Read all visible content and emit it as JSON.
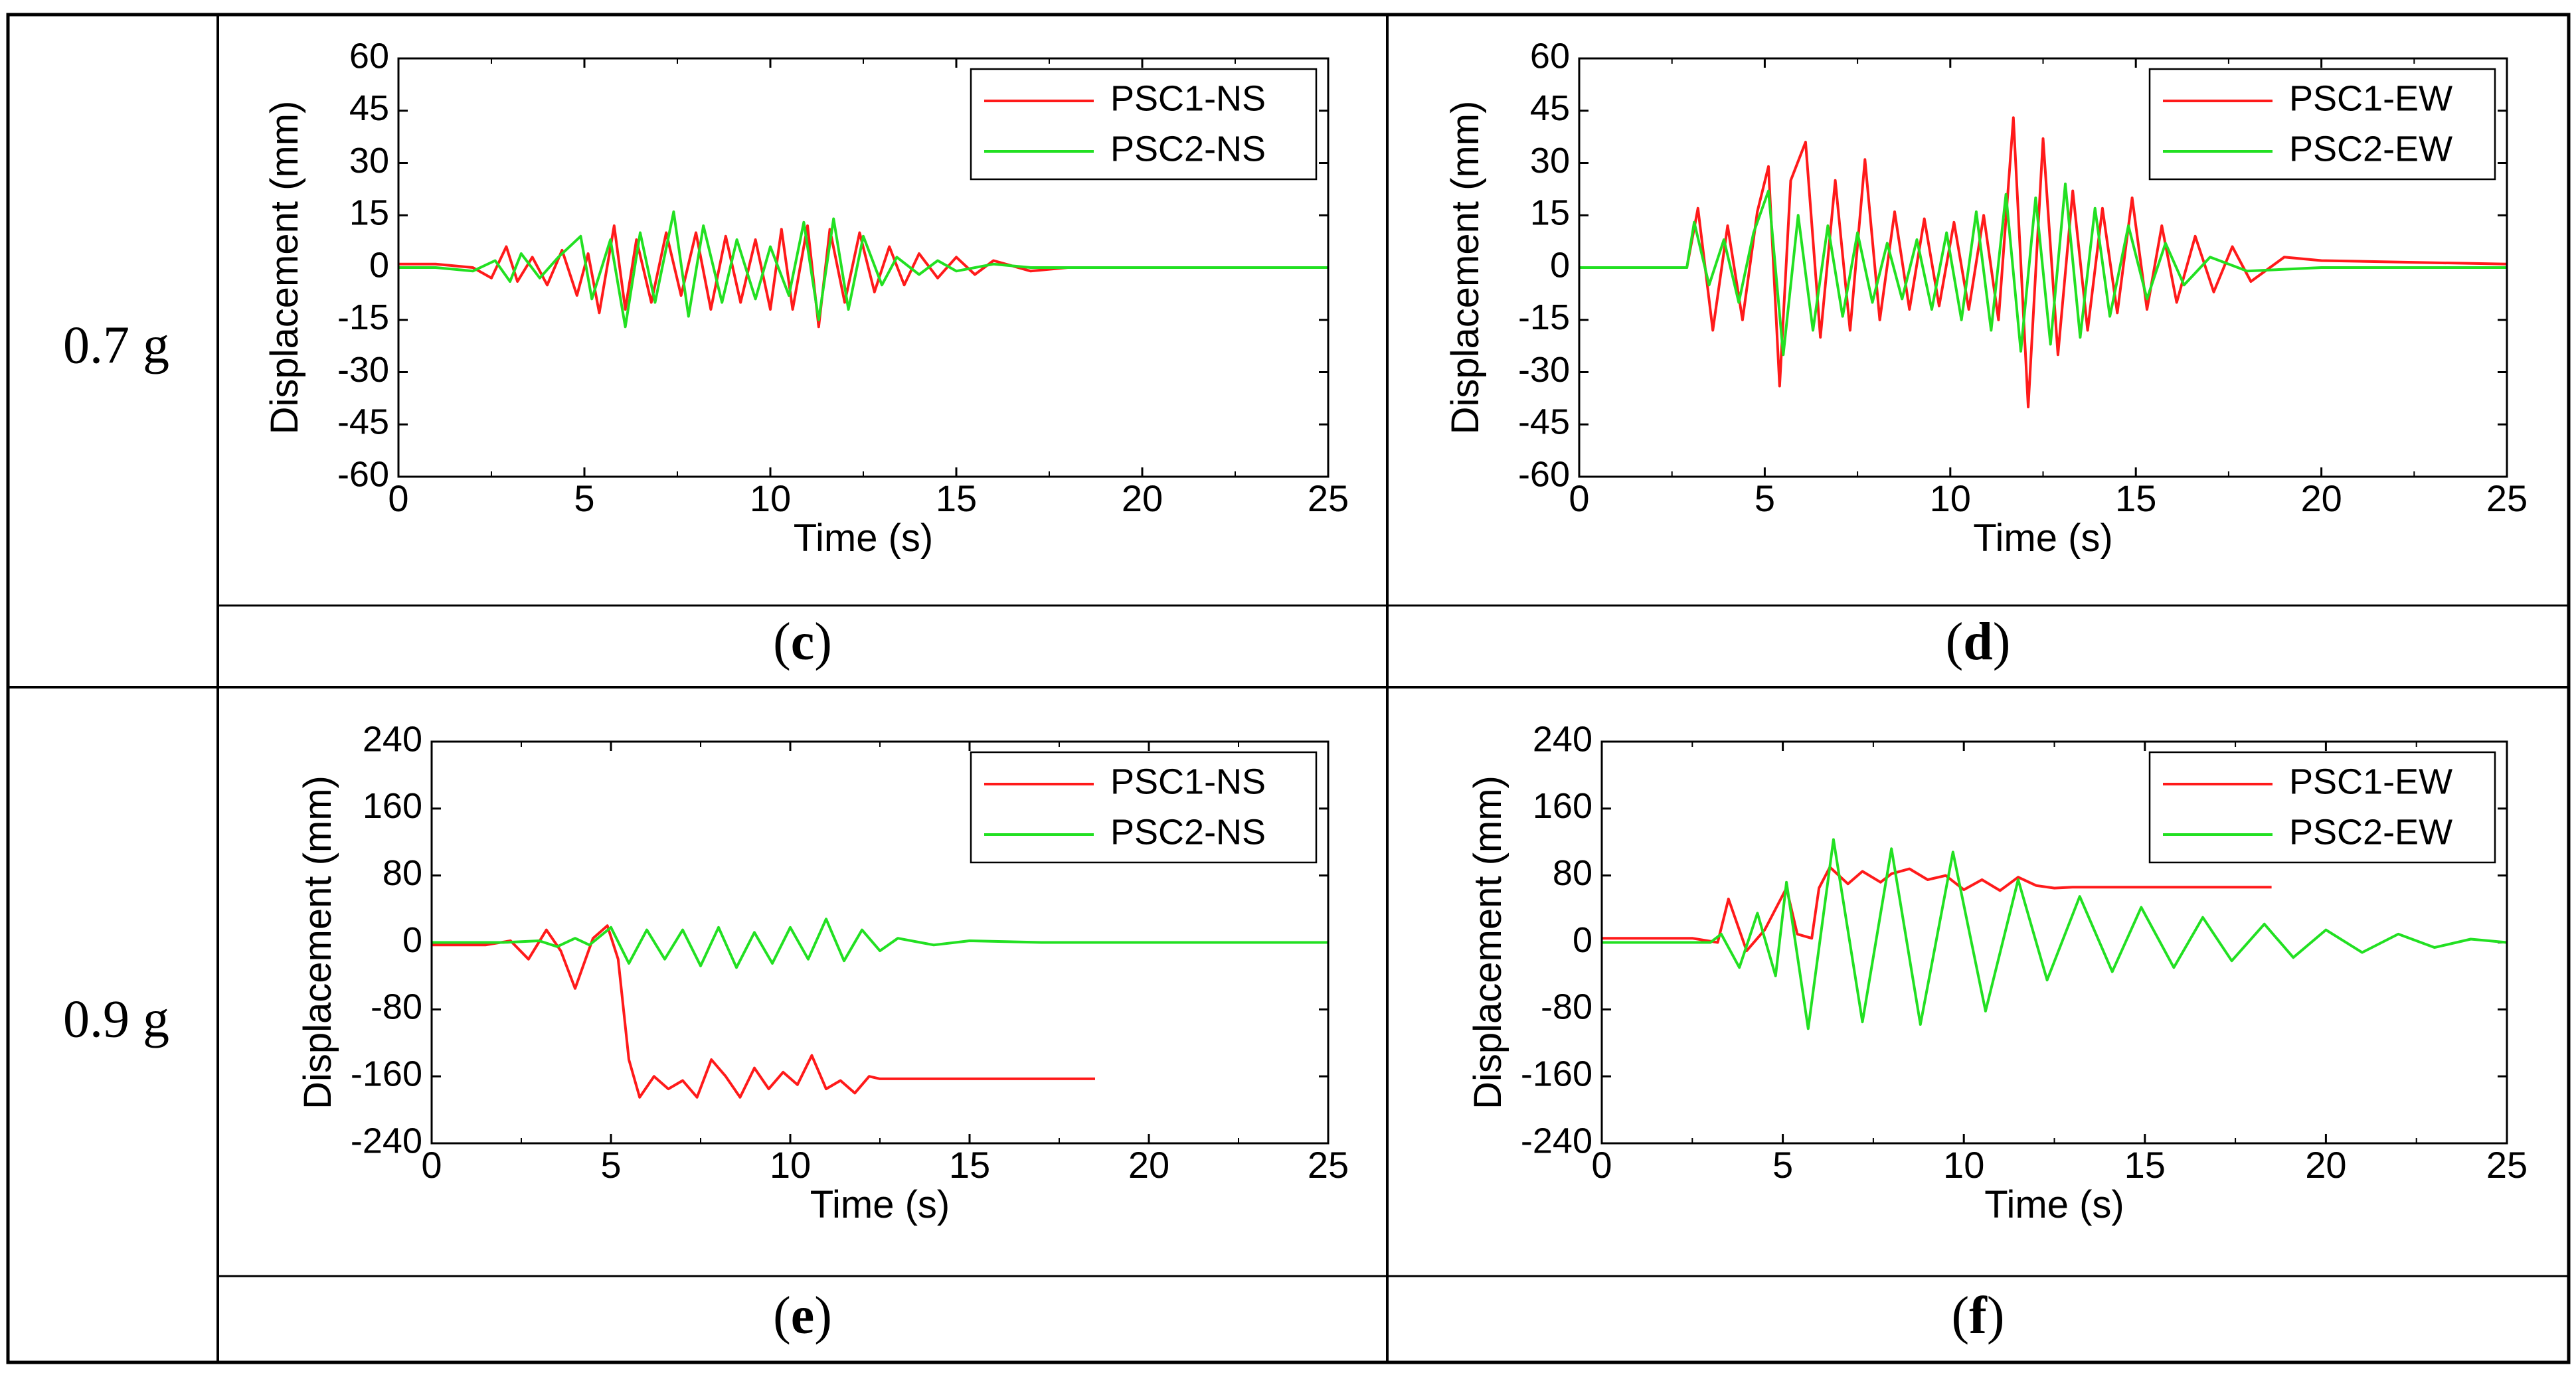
{
  "table": {
    "rows": [
      {
        "label": "0.7 g",
        "captions": [
          "c",
          "d"
        ]
      },
      {
        "label": "0.9 g",
        "captions": [
          "e",
          "f"
        ]
      }
    ]
  },
  "colors": {
    "psc1": "#ff1a1a",
    "psc2": "#22e022",
    "border": "#000000"
  },
  "chart_data": [
    {
      "id": "c",
      "type": "line",
      "xlabel": "Time (s)",
      "ylabel": "Displacement (mm)",
      "xlim": [
        0,
        25
      ],
      "ylim": [
        -60,
        60
      ],
      "xticks": [
        0,
        5,
        10,
        15,
        20,
        25
      ],
      "yticks": [
        60,
        45,
        30,
        15,
        0,
        -15,
        -30,
        -45,
        -60
      ],
      "legend_position": "top-right",
      "series": [
        {
          "name": "PSC1-NS",
          "color": "#ff1a1a",
          "x": [
            0,
            1,
            2,
            2.5,
            2.9,
            3.2,
            3.6,
            4,
            4.4,
            4.8,
            5.1,
            5.4,
            5.8,
            6.1,
            6.4,
            6.8,
            7.2,
            7.6,
            8,
            8.4,
            8.8,
            9.2,
            9.6,
            10,
            10.3,
            10.6,
            11,
            11.3,
            11.6,
            12,
            12.4,
            12.8,
            13.2,
            13.6,
            14,
            14.5,
            15,
            15.5,
            16,
            17,
            18,
            20,
            25
          ],
          "y": [
            1,
            1,
            0,
            -3,
            6,
            -4,
            3,
            -5,
            5,
            -8,
            4,
            -13,
            12,
            -12,
            8,
            -10,
            10,
            -8,
            10,
            -12,
            9,
            -10,
            8,
            -12,
            11,
            -12,
            12,
            -17,
            11,
            -10,
            10,
            -7,
            6,
            -5,
            4,
            -3,
            3,
            -2,
            2,
            -1,
            0,
            0,
            0
          ]
        },
        {
          "name": "PSC2-NS",
          "color": "#22e022",
          "x": [
            0,
            1,
            2,
            2.6,
            3,
            3.3,
            3.8,
            4.3,
            4.9,
            5.2,
            5.7,
            6.1,
            6.5,
            6.9,
            7.4,
            7.8,
            8.2,
            8.7,
            9.1,
            9.6,
            10,
            10.5,
            10.9,
            11.3,
            11.7,
            12.1,
            12.5,
            13,
            13.4,
            14,
            14.5,
            15,
            16,
            17,
            20,
            25
          ],
          "y": [
            0,
            0,
            -1,
            2,
            -4,
            4,
            -3,
            3,
            9,
            -9,
            8,
            -17,
            10,
            -10,
            16,
            -14,
            12,
            -10,
            8,
            -9,
            6,
            -8,
            13,
            -15,
            14,
            -12,
            9,
            -5,
            3,
            -2,
            2,
            -1,
            1,
            0,
            0,
            0
          ]
        }
      ]
    },
    {
      "id": "d",
      "type": "line",
      "xlabel": "Time (s)",
      "ylabel": "Displacement (mm)",
      "xlim": [
        0,
        25
      ],
      "ylim": [
        -60,
        60
      ],
      "xticks": [
        0,
        5,
        10,
        15,
        20,
        25
      ],
      "yticks": [
        60,
        45,
        30,
        15,
        0,
        -15,
        -30,
        -45,
        -60
      ],
      "legend_position": "top-right",
      "series": [
        {
          "name": "PSC1-EW",
          "color": "#ff1a1a",
          "x": [
            0,
            2.9,
            3.2,
            3.6,
            4,
            4.4,
            4.8,
            5.1,
            5.4,
            5.7,
            6.1,
            6.5,
            6.9,
            7.3,
            7.7,
            8.1,
            8.5,
            8.9,
            9.3,
            9.7,
            10.1,
            10.5,
            10.9,
            11.3,
            11.7,
            12.1,
            12.5,
            12.9,
            13.3,
            13.7,
            14.1,
            14.5,
            14.9,
            15.3,
            15.7,
            16.1,
            16.6,
            17.1,
            17.6,
            18.1,
            19,
            20,
            25
          ],
          "y": [
            0,
            0,
            17,
            -18,
            12,
            -15,
            16,
            29,
            -34,
            25,
            36,
            -20,
            25,
            -18,
            31,
            -15,
            16,
            -12,
            14,
            -11,
            13,
            -12,
            15,
            -15,
            43,
            -40,
            37,
            -25,
            22,
            -18,
            17,
            -13,
            20,
            -12,
            12,
            -10,
            9,
            -7,
            6,
            -4,
            3,
            2,
            1
          ]
        },
        {
          "name": "PSC2-EW",
          "color": "#22e022",
          "x": [
            0,
            2.9,
            3.1,
            3.5,
            3.9,
            4.3,
            4.7,
            5.1,
            5.5,
            5.9,
            6.3,
            6.7,
            7.1,
            7.5,
            7.9,
            8.3,
            8.7,
            9.1,
            9.5,
            9.9,
            10.3,
            10.7,
            11.1,
            11.5,
            11.9,
            12.3,
            12.7,
            13.1,
            13.5,
            13.9,
            14.3,
            14.8,
            15.3,
            15.8,
            16.3,
            17,
            18,
            20,
            25
          ],
          "y": [
            0,
            0,
            13,
            -5,
            8,
            -10,
            10,
            22,
            -25,
            15,
            -18,
            12,
            -14,
            10,
            -10,
            7,
            -9,
            8,
            -12,
            10,
            -15,
            16,
            -18,
            21,
            -24,
            20,
            -22,
            24,
            -20,
            17,
            -14,
            12,
            -9,
            7,
            -5,
            3,
            -1,
            0,
            0
          ]
        }
      ]
    },
    {
      "id": "e",
      "type": "line",
      "xlabel": "Time (s)",
      "ylabel": "Displacement (mm)",
      "xlim": [
        0,
        25
      ],
      "ylim": [
        -240,
        240
      ],
      "xticks": [
        0,
        5,
        10,
        15,
        20,
        25
      ],
      "yticks": [
        240,
        160,
        80,
        0,
        -80,
        -160,
        -240
      ],
      "legend_position": "top-right",
      "series": [
        {
          "name": "PSC1-NS",
          "color": "#ff1a1a",
          "x": [
            0,
            1.5,
            2.2,
            2.7,
            3.2,
            3.6,
            4,
            4.5,
            4.9,
            5.2,
            5.5,
            5.8,
            6.2,
            6.6,
            7,
            7.4,
            7.8,
            8.2,
            8.6,
            9,
            9.4,
            9.8,
            10.2,
            10.6,
            11,
            11.4,
            11.8,
            12.2,
            12.5,
            18.5
          ],
          "y": [
            -3,
            -3,
            2,
            -20,
            15,
            -10,
            -55,
            5,
            20,
            -20,
            -140,
            -185,
            -160,
            -175,
            -165,
            -185,
            -140,
            -160,
            -185,
            -150,
            -175,
            -155,
            -170,
            -135,
            -175,
            -165,
            -180,
            -160,
            -163,
            -163
          ]
        },
        {
          "name": "PSC2-NS",
          "color": "#22e022",
          "x": [
            0,
            2,
            3,
            3.5,
            4,
            4.4,
            5,
            5.5,
            6,
            6.5,
            7,
            7.5,
            8,
            8.5,
            9,
            9.5,
            10,
            10.5,
            11,
            11.5,
            12,
            12.5,
            13,
            14,
            15,
            17,
            25
          ],
          "y": [
            0,
            0,
            2,
            -5,
            5,
            -3,
            18,
            -25,
            15,
            -20,
            15,
            -28,
            18,
            -30,
            12,
            -25,
            18,
            -20,
            28,
            -22,
            15,
            -10,
            5,
            -3,
            2,
            0,
            0
          ]
        }
      ]
    },
    {
      "id": "f",
      "type": "line",
      "xlabel": "Time (s)",
      "ylabel": "Displacement (mm)",
      "xlim": [
        0,
        25
      ],
      "ylim": [
        -240,
        240
      ],
      "xticks": [
        0,
        5,
        10,
        15,
        20,
        25
      ],
      "yticks": [
        240,
        160,
        80,
        0,
        -80,
        -160,
        -240
      ],
      "legend_position": "top-right",
      "series": [
        {
          "name": "PSC1-EW",
          "color": "#ff1a1a",
          "x": [
            0,
            2.5,
            3.2,
            3.5,
            4,
            4.5,
            5.1,
            5.4,
            5.8,
            6,
            6.3,
            6.8,
            7.2,
            7.7,
            8,
            8.5,
            9,
            9.5,
            10,
            10.5,
            11,
            11.5,
            12,
            12.5,
            13,
            18.5
          ],
          "y": [
            5,
            5,
            0,
            52,
            -10,
            15,
            65,
            10,
            5,
            65,
            90,
            70,
            85,
            72,
            82,
            88,
            75,
            80,
            63,
            75,
            62,
            78,
            68,
            65,
            66,
            66
          ]
        },
        {
          "name": "PSC2-EW",
          "color": "#22e022",
          "x": [
            0,
            3,
            3.3,
            3.8,
            4.3,
            4.8,
            5.1,
            5.7,
            6.4,
            7.2,
            8,
            8.8,
            9.7,
            10.6,
            11.5,
            12.3,
            13.2,
            14.1,
            14.9,
            15.8,
            16.6,
            17.4,
            18.3,
            19.1,
            20,
            21,
            22,
            23,
            24,
            25
          ],
          "y": [
            0,
            0,
            10,
            -30,
            35,
            -40,
            72,
            -103,
            123,
            -95,
            112,
            -98,
            108,
            -82,
            75,
            -45,
            55,
            -35,
            42,
            -30,
            30,
            -22,
            22,
            -18,
            15,
            -12,
            10,
            -6,
            4,
            0
          ]
        }
      ]
    }
  ]
}
